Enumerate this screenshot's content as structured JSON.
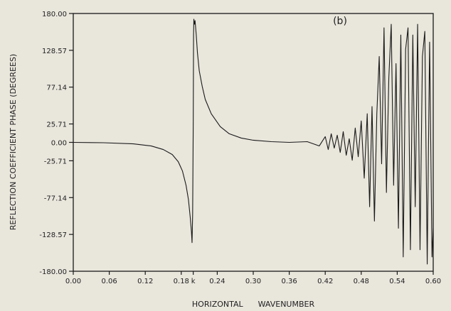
{
  "chart_data": {
    "type": "line",
    "panel_label": "(b)",
    "xlabel": "HORIZONTAL      WAVENUMBER",
    "ylabel": "REFLECTION COEFFICIENT PHASE (DEGREES)",
    "xlim": [
      0.0,
      0.6
    ],
    "ylim": [
      -180.0,
      180.0
    ],
    "x_ticks": [
      {
        "value": 0.0,
        "label": "0.00"
      },
      {
        "value": 0.06,
        "label": "0.06"
      },
      {
        "value": 0.12,
        "label": "0.12"
      },
      {
        "value": 0.18,
        "label": "0.18"
      },
      {
        "value": 0.2,
        "label": "k"
      },
      {
        "value": 0.24,
        "label": "0.24"
      },
      {
        "value": 0.3,
        "label": "0.30"
      },
      {
        "value": 0.36,
        "label": "0.36"
      },
      {
        "value": 0.42,
        "label": "0.42"
      },
      {
        "value": 0.48,
        "label": "0.48"
      },
      {
        "value": 0.54,
        "label": "0.54"
      },
      {
        "value": 0.6,
        "label": "0.60"
      }
    ],
    "y_ticks": [
      {
        "value": 180.0,
        "label": "180.00"
      },
      {
        "value": 128.57,
        "label": "128.57"
      },
      {
        "value": 77.14,
        "label": "77.14"
      },
      {
        "value": 25.71,
        "label": "25.71"
      },
      {
        "value": 0.0,
        "label": "0.00"
      },
      {
        "value": -25.71,
        "label": "-25.71"
      },
      {
        "value": -77.14,
        "label": "-77.14"
      },
      {
        "value": -128.57,
        "label": "-128.57"
      },
      {
        "value": -180.0,
        "label": "-180.00"
      }
    ],
    "grid": false,
    "series": [
      {
        "color": "#1a1a1a",
        "x": [
          0.0,
          0.05,
          0.1,
          0.13,
          0.15,
          0.165,
          0.175,
          0.182,
          0.188,
          0.192,
          0.195,
          0.197,
          0.198,
          0.199,
          0.2,
          0.2005,
          0.201,
          0.202,
          0.203,
          0.205,
          0.207,
          0.21,
          0.215,
          0.22,
          0.23,
          0.245,
          0.26,
          0.28,
          0.3,
          0.33,
          0.36,
          0.39,
          0.41,
          0.42,
          0.425,
          0.43,
          0.435,
          0.44,
          0.445,
          0.45,
          0.455,
          0.46,
          0.465,
          0.47,
          0.475,
          0.48,
          0.485,
          0.49,
          0.494,
          0.498,
          0.502,
          0.506,
          0.51,
          0.514,
          0.518,
          0.522,
          0.526,
          0.53,
          0.534,
          0.538,
          0.542,
          0.546,
          0.55,
          0.554,
          0.558,
          0.562,
          0.566,
          0.57,
          0.574,
          0.578,
          0.582,
          0.586,
          0.59,
          0.594,
          0.598,
          0.6
        ],
        "y": [
          0.0,
          -0.5,
          -2.0,
          -5.0,
          -10.0,
          -17.0,
          -27.0,
          -40.0,
          -60.0,
          -80.0,
          -105.0,
          -125.0,
          -140.0,
          -100.0,
          30.0,
          150.0,
          172.0,
          165.0,
          170.0,
          150.0,
          125.0,
          100.0,
          78.0,
          60.0,
          40.0,
          22.0,
          12.0,
          6.0,
          3.0,
          1.0,
          0.0,
          1.0,
          -5.0,
          8.0,
          -10.0,
          12.0,
          -8.0,
          10.0,
          -14.0,
          15.0,
          -18.0,
          5.0,
          -25.0,
          20.0,
          -20.0,
          30.0,
          -50.0,
          40.0,
          -90.0,
          50.0,
          -110.0,
          40.0,
          120.0,
          -30.0,
          160.0,
          -70.0,
          90.0,
          165.0,
          -60.0,
          110.0,
          -120.0,
          150.0,
          -160.0,
          130.0,
          160.0,
          -150.0,
          150.0,
          -90.0,
          165.0,
          -150.0,
          120.0,
          155.0,
          -170.0,
          140.0,
          -160.0,
          -120.0
        ]
      }
    ]
  }
}
